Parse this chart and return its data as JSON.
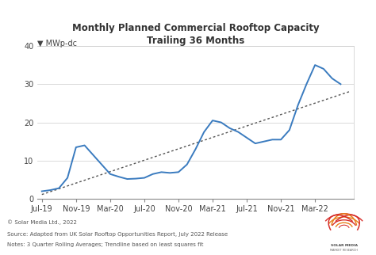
{
  "title": "Monthly Planned Commercial Rooftop Capacity\nTrailing 36 Months",
  "ylabel_label": "MWp-dc",
  "background_color": "#f5f5f5",
  "line_color": "#3a7bbf",
  "trendline_color": "#555555",
  "ylim": [
    0,
    40
  ],
  "yticks": [
    0,
    10,
    20,
    30,
    40
  ],
  "xtick_labels": [
    "Jul-19",
    "Nov-19",
    "Mar-20",
    "Jul-20",
    "Nov-20",
    "Mar-21",
    "Jul-21",
    "Nov-21",
    "Mar-22"
  ],
  "x_values": [
    0,
    1,
    2,
    3,
    4,
    5,
    6,
    7,
    8,
    9,
    10,
    11,
    12,
    13,
    14,
    15,
    16,
    17,
    18,
    19,
    20,
    21,
    22,
    23,
    24,
    25,
    26,
    27,
    28,
    29,
    30,
    31,
    32,
    33,
    34,
    35
  ],
  "y_values": [
    2.0,
    2.3,
    2.8,
    5.5,
    13.5,
    14.0,
    11.5,
    9.0,
    6.5,
    5.8,
    5.2,
    5.3,
    5.5,
    6.5,
    7.0,
    6.8,
    7.0,
    9.0,
    13.0,
    17.5,
    20.5,
    20.0,
    18.5,
    17.5,
    16.0,
    14.5,
    15.0,
    15.5,
    15.5,
    18.0,
    24.5,
    30.0,
    35.0,
    34.0,
    31.5,
    30.0
  ],
  "xtick_positions": [
    0,
    4,
    8,
    12,
    16,
    20,
    24,
    28,
    32
  ],
  "footnote_line1": "© Solar Media Ltd., 2022",
  "footnote_line2": "Source: Adapted from UK Solar Rooftop Opportunities Report, July 2022 Release",
  "footnote_line3": "Notes: 3 Quarter Rolling Averages; Trendline based on least squares fit"
}
